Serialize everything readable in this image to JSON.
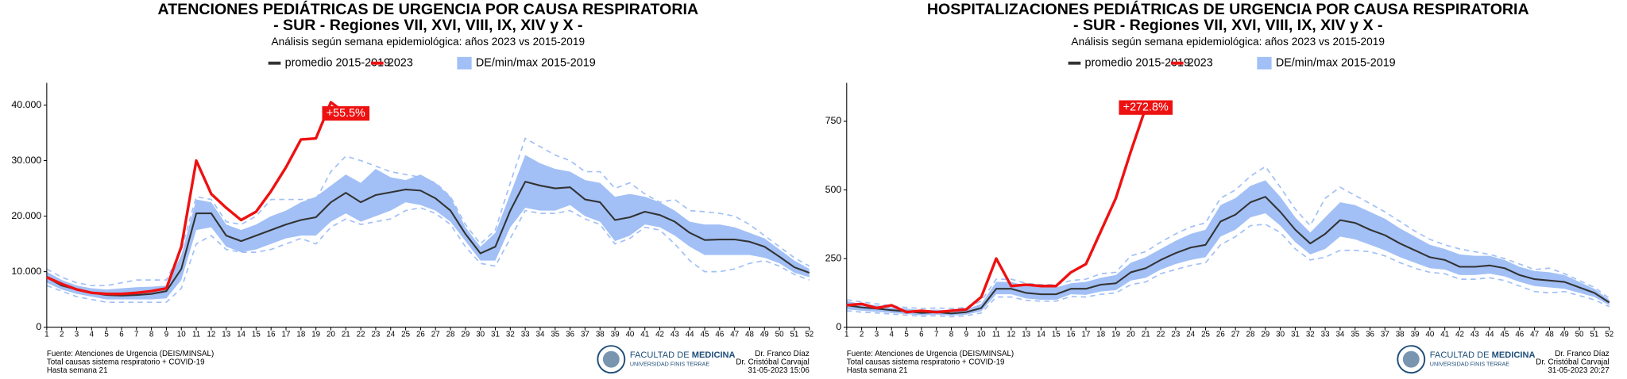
{
  "chart_data": [
    {
      "type": "line",
      "title": [
        "ATENCIONES PEDIÁTRICAS DE URGENCIA POR CAUSA RESPIRATORIA",
        "- SUR - Regiones VII, XVI, VIII, IX, XIV y X -"
      ],
      "subtitle": "Análisis según semana epidemiológica: años 2023 vs 2015-2019",
      "x": [
        1,
        2,
        3,
        4,
        5,
        6,
        7,
        8,
        9,
        10,
        11,
        12,
        13,
        14,
        15,
        16,
        17,
        18,
        19,
        20,
        21,
        22,
        23,
        24,
        25,
        26,
        27,
        28,
        29,
        30,
        31,
        32,
        33,
        34,
        35,
        36,
        37,
        38,
        39,
        40,
        41,
        42,
        43,
        44,
        45,
        46,
        47,
        48,
        49,
        50,
        51,
        52
      ],
      "xlim": [
        1,
        52
      ],
      "ylim": [
        0,
        44000
      ],
      "yticks": [
        0,
        {
          "value": 10000,
          "label": "10.000"
        },
        {
          "value": 20000,
          "label": "20.000"
        },
        {
          "value": 30000,
          "label": "30.000"
        },
        {
          "value": 40000,
          "label": "40.000"
        }
      ],
      "series": [
        {
          "name": "promedio 2015-2019",
          "color": "#333333",
          "values": [
            9000,
            7500,
            6800,
            6200,
            5800,
            5700,
            5800,
            6000,
            6500,
            10500,
            20500,
            20500,
            16500,
            15500,
            16500,
            17500,
            18500,
            19300,
            19800,
            22500,
            24200,
            22500,
            23800,
            24300,
            24800,
            24600,
            23200,
            21000,
            16800,
            13300,
            14500,
            21000,
            26200,
            25500,
            25000,
            25200,
            23000,
            22500,
            19300,
            19800,
            20800,
            20200,
            19000,
            17000,
            15700,
            15800,
            15800,
            15400,
            14500,
            12700,
            10800,
            9800
          ]
        },
        {
          "name": "2023",
          "color": "#ee1111",
          "values": [
            9000,
            7800,
            6800,
            6200,
            6000,
            6000,
            6200,
            6500,
            7000,
            14500,
            30000,
            24000,
            21500,
            19300,
            20800,
            24500,
            28800,
            33800,
            34000,
            40500,
            38500,
            null,
            null,
            null,
            null,
            null,
            null,
            null,
            null,
            null,
            null,
            null,
            null,
            null,
            null,
            null,
            null,
            null,
            null,
            null,
            null,
            null,
            null,
            null,
            null,
            null,
            null,
            null,
            null,
            null,
            null,
            null
          ]
        }
      ],
      "band": {
        "name": "DE/min/max 2015-2019",
        "color": "#a2c0f6",
        "upper": [
          10000,
          8500,
          7500,
          7000,
          6800,
          7000,
          7200,
          7300,
          7500,
          13000,
          23000,
          22500,
          18500,
          17500,
          18500,
          20000,
          21000,
          22500,
          23500,
          25500,
          27500,
          26000,
          28500,
          27000,
          26500,
          27500,
          26000,
          23500,
          18000,
          14500,
          17000,
          24000,
          31000,
          29500,
          28500,
          28000,
          26500,
          26000,
          23500,
          24000,
          23500,
          22500,
          21000,
          19000,
          18500,
          18500,
          18000,
          17000,
          16000,
          14000,
          12000,
          10500
        ],
        "lower": [
          8000,
          6800,
          6000,
          5500,
          5000,
          5000,
          5000,
          5000,
          5200,
          8500,
          17500,
          18000,
          14500,
          13500,
          14000,
          15000,
          16000,
          16500,
          16500,
          19000,
          20500,
          19000,
          20000,
          21000,
          22500,
          22000,
          21000,
          19000,
          15500,
          12000,
          12000,
          18000,
          21500,
          21000,
          21000,
          22000,
          20000,
          19000,
          15500,
          16500,
          18500,
          18000,
          16500,
          14500,
          13000,
          13000,
          13000,
          13000,
          12500,
          11500,
          9800,
          9000
        ],
        "max": [
          10500,
          9000,
          8000,
          7500,
          7500,
          8000,
          8500,
          8500,
          8500,
          14000,
          23500,
          23000,
          19000,
          18500,
          20000,
          23000,
          23000,
          23000,
          23000,
          28000,
          30800,
          30000,
          29000,
          28000,
          27500,
          27000,
          26000,
          23500,
          18500,
          15000,
          17500,
          26000,
          34000,
          32500,
          31000,
          30000,
          28000,
          28000,
          25000,
          26000,
          24000,
          22500,
          23000,
          21000,
          20800,
          20500,
          20000,
          18500,
          16500,
          14500,
          12500,
          11000
        ],
        "min": [
          7500,
          6500,
          5500,
          5000,
          4500,
          4500,
          4500,
          4500,
          4500,
          7000,
          15000,
          16500,
          14000,
          13500,
          13500,
          14000,
          15000,
          16000,
          15000,
          18000,
          19500,
          18500,
          19000,
          19500,
          21000,
          21500,
          20500,
          18500,
          14500,
          11500,
          11000,
          16000,
          21000,
          20500,
          20500,
          21000,
          19500,
          18500,
          15000,
          16000,
          18000,
          17500,
          15000,
          12000,
          10000,
          10000,
          10500,
          11500,
          12000,
          11000,
          9500,
          8500
        ]
      },
      "annotation": "+55.5%",
      "footer": {
        "source": [
          "Fuente: Atenciones de Urgencia (DEIS/MINSAL)",
          "Total causas sistema respiratorio + COVID-19",
          "Hasta semana 21"
        ],
        "logo": [
          "FACULTAD DE",
          "MEDICINA",
          "UNIVERSIDAD FINIS TERRAE"
        ],
        "authors": [
          "Dr. Franco Díaz",
          "Dr. Cristóbal Carvajal",
          "31-05-2023 15:06"
        ]
      }
    },
    {
      "type": "line",
      "title": [
        "HOSPITALIZACIONES PEDIÁTRICAS DE URGENCIA POR CAUSA RESPIRATORIA",
        "- SUR - Regiones VII, XVI, VIII, IX, XIV y X -"
      ],
      "subtitle": "Análisis según semana epidemiológica: años 2023 vs 2015-2019",
      "x": [
        1,
        2,
        3,
        4,
        5,
        6,
        7,
        8,
        9,
        10,
        11,
        12,
        13,
        14,
        15,
        16,
        17,
        18,
        19,
        20,
        21,
        22,
        23,
        24,
        25,
        26,
        27,
        28,
        29,
        30,
        31,
        32,
        33,
        34,
        35,
        36,
        37,
        38,
        39,
        40,
        41,
        42,
        43,
        44,
        45,
        46,
        47,
        48,
        49,
        50,
        51,
        52
      ],
      "xlim": [
        1,
        52
      ],
      "ylim": [
        0,
        890
      ],
      "yticks": [
        0,
        250,
        500,
        750
      ],
      "series": [
        {
          "name": "promedio 2015-2019",
          "color": "#333333",
          "values": [
            80,
            72,
            68,
            62,
            58,
            52,
            55,
            50,
            55,
            70,
            140,
            140,
            125,
            120,
            120,
            140,
            140,
            155,
            160,
            200,
            215,
            245,
            270,
            290,
            300,
            385,
            410,
            455,
            475,
            420,
            355,
            305,
            340,
            390,
            380,
            355,
            335,
            305,
            280,
            255,
            245,
            220,
            220,
            225,
            215,
            190,
            175,
            170,
            165,
            145,
            125,
            90
          ]
        },
        {
          "name": "2023",
          "color": "#ee1111",
          "values": [
            80,
            85,
            70,
            80,
            55,
            60,
            55,
            60,
            65,
            110,
            250,
            150,
            155,
            150,
            150,
            200,
            230,
            350,
            470,
            640,
            800,
            null,
            null,
            null,
            null,
            null,
            null,
            null,
            null,
            null,
            null,
            null,
            null,
            null,
            null,
            null,
            null,
            null,
            null,
            null,
            null,
            null,
            null,
            null,
            null,
            null,
            null,
            null,
            null,
            null,
            null,
            null
          ]
        }
      ],
      "band": {
        "name": "DE/min/max 2015-2019",
        "color": "#a2c0f6",
        "upper": [
          95,
          85,
          80,
          72,
          68,
          62,
          64,
          60,
          65,
          85,
          165,
          165,
          150,
          145,
          145,
          160,
          165,
          180,
          190,
          235,
          255,
          285,
          315,
          340,
          355,
          445,
          470,
          515,
          535,
          475,
          400,
          345,
          400,
          455,
          445,
          420,
          395,
          360,
          330,
          300,
          285,
          265,
          260,
          260,
          245,
          220,
          205,
          200,
          190,
          165,
          140,
          100
        ],
        "lower": [
          65,
          60,
          56,
          52,
          48,
          43,
          46,
          42,
          46,
          58,
          120,
          120,
          105,
          100,
          100,
          120,
          118,
          130,
          135,
          170,
          180,
          210,
          230,
          245,
          255,
          330,
          355,
          400,
          415,
          370,
          310,
          265,
          285,
          330,
          320,
          300,
          280,
          255,
          235,
          215,
          210,
          190,
          190,
          195,
          185,
          165,
          150,
          145,
          140,
          125,
          110,
          80
        ],
        "max": [
          100,
          92,
          85,
          78,
          72,
          68,
          70,
          68,
          72,
          95,
          175,
          175,
          160,
          155,
          155,
          170,
          175,
          195,
          200,
          260,
          275,
          310,
          340,
          365,
          380,
          470,
          500,
          550,
          585,
          510,
          430,
          370,
          470,
          510,
          480,
          450,
          420,
          385,
          350,
          320,
          300,
          285,
          275,
          265,
          250,
          230,
          210,
          215,
          195,
          170,
          145,
          105
        ],
        "min": [
          60,
          55,
          52,
          48,
          44,
          40,
          42,
          38,
          42,
          52,
          110,
          110,
          98,
          95,
          95,
          112,
          110,
          120,
          125,
          155,
          165,
          195,
          210,
          225,
          235,
          300,
          330,
          370,
          375,
          345,
          285,
          245,
          255,
          280,
          280,
          275,
          260,
          235,
          215,
          200,
          195,
          175,
          175,
          180,
          170,
          150,
          130,
          125,
          130,
          115,
          100,
          75
        ]
      },
      "annotation": "+272.8%",
      "footer": {
        "source": [
          "Fuente: Atenciones de Urgencia (DEIS/MINSAL)",
          "Total causas sistema respiratorio + COVID-19",
          "Hasta semana 21"
        ],
        "logo": [
          "FACULTAD DE",
          "MEDICINA",
          "UNIVERSIDAD FINIS TERRAE"
        ],
        "authors": [
          "Dr. Franco Díaz",
          "Dr. Cristóbal Carvajal",
          "31-05-2023 20:27"
        ]
      }
    }
  ]
}
